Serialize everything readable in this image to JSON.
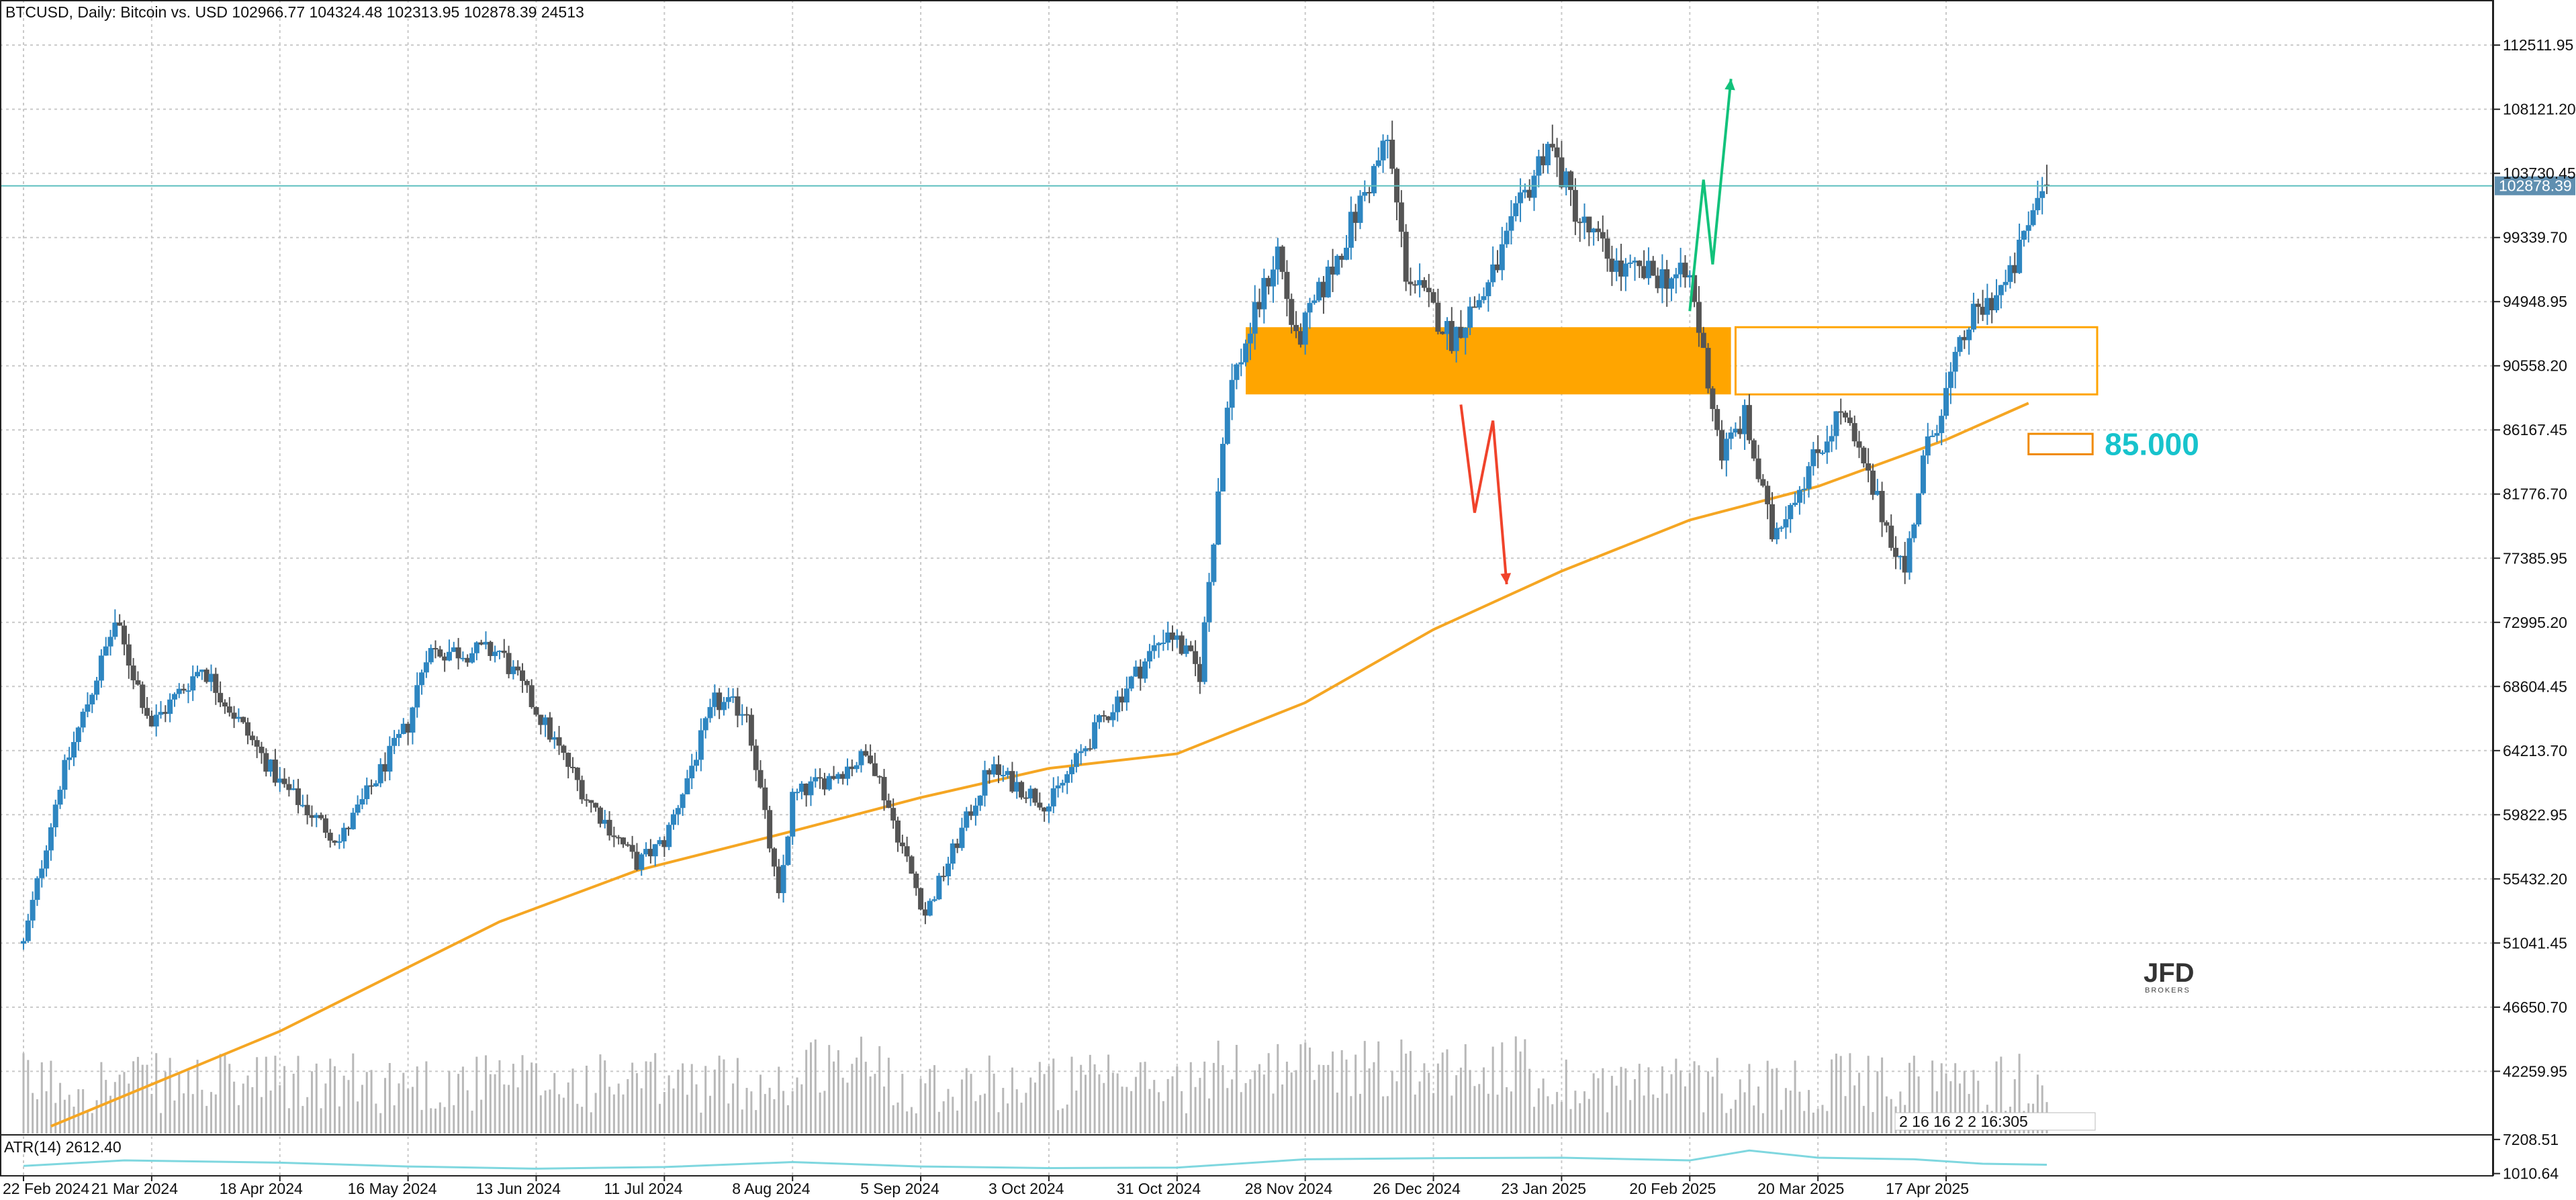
{
  "chart_data": {
    "type": "candlestick",
    "title": "BTCUSD, Daily:  Bitcoin vs. USD  102966.77 104324.48 102313.95 102878.39  24513",
    "symbol": "BTCUSD",
    "timeframe": "Daily",
    "description": "Bitcoin vs. USD",
    "ohlc_last": {
      "open": 102966.77,
      "high": 104324.48,
      "low": 102313.95,
      "close": 102878.39,
      "volume": 24513
    },
    "current_price_label": "102878.39",
    "current_price": 102878.39,
    "ylim": [
      38000,
      115600
    ],
    "y_ticks": [
      112511.95,
      108121.2,
      103730.45,
      99339.7,
      94948.95,
      90558.2,
      86167.45,
      81776.7,
      77385.95,
      72995.2,
      68604.45,
      64213.7,
      59822.95,
      55432.2,
      51041.45,
      46650.7,
      42259.95
    ],
    "y_tick_labels": [
      "112511.95",
      "108121.20",
      "103730.45",
      "99339.70",
      "94948.95",
      "90558.20",
      "86167.45",
      "81776.70",
      "77385.95",
      "72995.20",
      "68604.45",
      "64213.70",
      "59822.95",
      "55432.20",
      "51041.45",
      "46650.70",
      "42259.95"
    ],
    "x_tick_labels": [
      "22 Feb 2024",
      "21 Mar 2024",
      "18 Apr 2024",
      "16 May 2024",
      "13 Jun 2024",
      "11 Jul 2024",
      "8 Aug 2024",
      "5 Sep 2024",
      "3 Oct 2024",
      "31 Oct 2024",
      "28 Nov 2024",
      "26 Dec 2024",
      "23 Jan 2025",
      "20 Feb 2025",
      "20 Mar 2025",
      "17 Apr 2025"
    ],
    "grid": true,
    "key_points": [
      {
        "date": "2024-02-22",
        "close": 51000
      },
      {
        "date": "2024-03-01",
        "close": 62000
      },
      {
        "date": "2024-03-13",
        "close": 73000
      },
      {
        "date": "2024-03-21",
        "close": 66000
      },
      {
        "date": "2024-04-01",
        "close": 70000
      },
      {
        "date": "2024-04-18",
        "close": 62000
      },
      {
        "date": "2024-05-01",
        "close": 58000
      },
      {
        "date": "2024-05-16",
        "close": 66000
      },
      {
        "date": "2024-05-20",
        "close": 71000
      },
      {
        "date": "2024-06-05",
        "close": 71000
      },
      {
        "date": "2024-06-13",
        "close": 67000
      },
      {
        "date": "2024-06-24",
        "close": 61000
      },
      {
        "date": "2024-07-05",
        "close": 56500
      },
      {
        "date": "2024-07-11",
        "close": 58000
      },
      {
        "date": "2024-07-22",
        "close": 67500
      },
      {
        "date": "2024-07-29",
        "close": 67000
      },
      {
        "date": "2024-08-05",
        "close": 54000
      },
      {
        "date": "2024-08-08",
        "close": 61000
      },
      {
        "date": "2024-08-25",
        "close": 64000
      },
      {
        "date": "2024-09-06",
        "close": 53000
      },
      {
        "date": "2024-09-20",
        "close": 63000
      },
      {
        "date": "2024-10-03",
        "close": 60500
      },
      {
        "date": "2024-10-14",
        "close": 66000
      },
      {
        "date": "2024-10-29",
        "close": 72500
      },
      {
        "date": "2024-11-05",
        "close": 69500
      },
      {
        "date": "2024-11-11",
        "close": 88500
      },
      {
        "date": "2024-11-22",
        "close": 98500
      },
      {
        "date": "2024-11-26",
        "close": 92000
      },
      {
        "date": "2024-12-05",
        "close": 98000
      },
      {
        "date": "2024-12-16",
        "close": 106000
      },
      {
        "date": "2024-12-20",
        "close": 97000
      },
      {
        "date": "2024-12-30",
        "close": 92500
      },
      {
        "date": "2025-01-07",
        "close": 96000
      },
      {
        "date": "2025-01-20",
        "close": 106000
      },
      {
        "date": "2025-01-27",
        "close": 100500
      },
      {
        "date": "2025-02-05",
        "close": 97000
      },
      {
        "date": "2025-02-20",
        "close": 96500
      },
      {
        "date": "2025-02-27",
        "close": 84500
      },
      {
        "date": "2025-03-04",
        "close": 87000
      },
      {
        "date": "2025-03-10",
        "close": 79000
      },
      {
        "date": "2025-03-25",
        "close": 87500
      },
      {
        "date": "2025-04-08",
        "close": 76500
      },
      {
        "date": "2025-04-12",
        "close": 84000
      },
      {
        "date": "2025-04-22",
        "close": 93500
      },
      {
        "date": "2025-05-01",
        "close": 96500
      },
      {
        "date": "2025-05-08",
        "close": 103000
      },
      {
        "date": "2025-05-09",
        "close": 102878.39
      }
    ],
    "moving_average": {
      "color": "#f5a623",
      "points": [
        {
          "date": "2024-02-28",
          "value": 38500
        },
        {
          "date": "2024-04-18",
          "value": 45000
        },
        {
          "date": "2024-06-05",
          "value": 52500
        },
        {
          "date": "2024-07-05",
          "value": 56000
        },
        {
          "date": "2024-08-08",
          "value": 58700
        },
        {
          "date": "2024-09-05",
          "value": 61000
        },
        {
          "date": "2024-10-03",
          "value": 63000
        },
        {
          "date": "2024-10-31",
          "value": 64000
        },
        {
          "date": "2024-11-28",
          "value": 67500
        },
        {
          "date": "2024-12-26",
          "value": 72500
        },
        {
          "date": "2025-01-23",
          "value": 76500
        },
        {
          "date": "2025-02-20",
          "value": 80000
        },
        {
          "date": "2025-03-20",
          "value": 82300
        },
        {
          "date": "2025-04-17",
          "value": 85500
        },
        {
          "date": "2025-05-05",
          "value": 88000
        }
      ]
    },
    "zones": [
      {
        "name": "supply-zone-filled",
        "from": "2024-11-15",
        "to": "2025-03-01",
        "top": 93200,
        "bottom": 88600,
        "color": "#ffa500",
        "filled": true
      },
      {
        "name": "zone-outline",
        "from": "2025-03-02",
        "to": "2025-05-20",
        "top": 93200,
        "bottom": 88600,
        "color": "#ffa500",
        "filled": false
      },
      {
        "name": "target-box",
        "from": "2025-05-05",
        "to": "2025-05-19",
        "top": 85900,
        "bottom": 84500,
        "color": "#f08a00",
        "filled": false
      }
    ],
    "annotations": {
      "target_text": "85.000",
      "target_color": "#17c3cc",
      "logo": "JFD BROKERS",
      "green_arrow": {
        "color": "#12c27b",
        "points": [
          {
            "date": "2025-02-20",
            "value": 94300
          },
          {
            "date": "2025-02-23",
            "value": 103300
          },
          {
            "date": "2025-02-25",
            "value": 97500
          },
          {
            "date": "2025-03-01",
            "value": 110200
          }
        ]
      },
      "red_arrow": {
        "color": "#f0432b",
        "points": [
          {
            "date": "2025-01-01",
            "value": 87900
          },
          {
            "date": "2025-01-04",
            "value": 80500
          },
          {
            "date": "2025-01-08",
            "value": 86800
          },
          {
            "date": "2025-01-11",
            "value": 75600
          }
        ]
      }
    },
    "volume_tooltip_text": "2 16 16 2 2 16:305",
    "atr": {
      "label": "ATR(14) 2612.40",
      "ylim": [
        600,
        7800
      ],
      "y_tick_labels": [
        "7208.51",
        "1010.64"
      ],
      "y_ticks": [
        7208.51,
        1010.64
      ],
      "color": "#7fd7df",
      "points": [
        {
          "date": "2024-02-22",
          "value": 2400
        },
        {
          "date": "2024-03-15",
          "value": 3400
        },
        {
          "date": "2024-04-18",
          "value": 3000
        },
        {
          "date": "2024-05-16",
          "value": 2300
        },
        {
          "date": "2024-06-13",
          "value": 1900
        },
        {
          "date": "2024-07-11",
          "value": 2200
        },
        {
          "date": "2024-08-08",
          "value": 3100
        },
        {
          "date": "2024-09-05",
          "value": 2300
        },
        {
          "date": "2024-10-03",
          "value": 2000
        },
        {
          "date": "2024-10-31",
          "value": 2100
        },
        {
          "date": "2024-11-28",
          "value": 3600
        },
        {
          "date": "2024-12-26",
          "value": 3800
        },
        {
          "date": "2025-01-23",
          "value": 3900
        },
        {
          "date": "2025-02-20",
          "value": 3400
        },
        {
          "date": "2025-03-05",
          "value": 5200
        },
        {
          "date": "2025-03-20",
          "value": 3900
        },
        {
          "date": "2025-04-10",
          "value": 3600
        },
        {
          "date": "2025-04-25",
          "value": 2800
        },
        {
          "date": "2025-05-09",
          "value": 2612.4
        }
      ]
    },
    "colors": {
      "bull": "#2e86c1",
      "bear": "#555555",
      "grid": "#c9c9c9",
      "volume": "#b8b8b8",
      "current_price_line": "#5fbfbf",
      "current_price_label_bg": "#5f8fb0"
    }
  }
}
